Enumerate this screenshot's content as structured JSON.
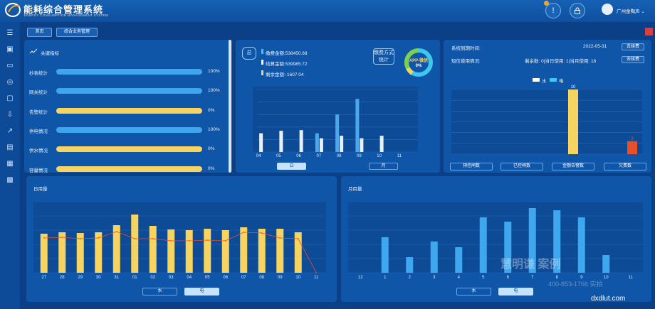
{
  "header": {
    "title": "能耗综合管理系统",
    "subtitle": "ENERGY CONSUMPTION MANAGEMENT SYSTEM",
    "alert_glyph": "!",
    "user_name": "广州金陶声"
  },
  "nav": {
    "home": "首页",
    "tab": "综合业务管理"
  },
  "key_indicators": {
    "title": "关键指标",
    "rows": [
      {
        "label": "抄表统计",
        "value": 100,
        "display": "100%",
        "color": "#3ea5ee"
      },
      {
        "label": "网关统计",
        "value": 100,
        "display": "100%",
        "color": "#3ea5ee"
      },
      {
        "label": "告警统计",
        "value": 0,
        "display": "0%",
        "color": "#f7d35f"
      },
      {
        "label": "供电情况",
        "value": 100,
        "display": "100%",
        "color": "#3ea5ee"
      },
      {
        "label": "供水情况",
        "value": 0,
        "display": "0%",
        "color": "#f7d35f"
      },
      {
        "label": "容量情况",
        "value": 0,
        "display": "0%",
        "color": "#f7d35f"
      }
    ]
  },
  "payment": {
    "total_tag": "总",
    "items": [
      {
        "label": "缴费金额:538450.68",
        "color": "#3ec8f0"
      },
      {
        "label": "结算金额:539985.72",
        "color": "#ffffff"
      },
      {
        "label": "剩余金额:-1607.04",
        "color": "#f7d35f"
      }
    ],
    "method_label": "缴费方式统计",
    "donut_label": "APP-微信",
    "donut_value": "0%",
    "tabs": [
      "日",
      "月"
    ],
    "active_tab": "日"
  },
  "system": {
    "expire_label": "系统到期时间:",
    "expire_date": "2022-05-31",
    "renew_btn": "去续费",
    "sms_label": "短信使用情况:",
    "sms_detail": "剩余数: 0|当日使用: 1|当月使用: 18",
    "legend": [
      "水",
      "电"
    ],
    "buttons": [
      "预控闸数",
      "已控闸数",
      "金额告警数",
      "欠费数"
    ]
  },
  "daily": {
    "title": "日用量",
    "tabs": [
      "水",
      "电"
    ],
    "active_tab": "电"
  },
  "monthly": {
    "title": "月用量",
    "tabs": [
      "水",
      "电"
    ],
    "active_tab": "电"
  },
  "watermark": {
    "brand": "慧明谦 案例",
    "phone": "400-853-1766 实拍",
    "site": "dxdlut.com"
  },
  "chart_data": [
    {
      "type": "bar",
      "name": "payment-chart",
      "categories": [
        "04",
        "05",
        "06",
        "07",
        "08",
        "09",
        "10",
        "11"
      ],
      "series": [
        {
          "name": "缴费金额",
          "color": "#4aa8ec",
          "values": [
            0,
            0,
            0,
            30,
            60,
            85,
            0,
            0
          ]
        },
        {
          "name": "结算金额",
          "color": "#e8f1fb",
          "values": [
            30,
            34,
            35,
            22,
            26,
            22,
            26,
            0
          ]
        }
      ],
      "ylim": [
        0,
        100
      ]
    },
    {
      "type": "bar",
      "name": "alarm-chart",
      "categories": [
        "",
        ""
      ],
      "series": [
        {
          "name": "value",
          "values": [
            10,
            2
          ],
          "colors": [
            "#f7d35f",
            "#e8502a"
          ]
        }
      ],
      "ylim": [
        0,
        10
      ]
    },
    {
      "type": "bar",
      "name": "daily-chart",
      "categories": [
        "27",
        "28",
        "29",
        "30",
        "31",
        "01",
        "02",
        "03",
        "04",
        "05",
        "06",
        "07",
        "08",
        "09",
        "10",
        "11"
      ],
      "series": [
        {
          "name": "电",
          "color": "#f7d35f",
          "values": [
            55,
            57,
            56,
            57,
            67,
            82,
            66,
            61,
            60,
            62,
            60,
            64,
            62,
            62,
            57,
            0
          ]
        },
        {
          "name": "trend",
          "type": "line",
          "color": "#e8502a",
          "values": [
            49,
            50,
            48,
            49,
            58,
            48,
            48,
            45,
            45,
            46,
            45,
            57,
            56,
            49,
            48,
            0
          ]
        }
      ],
      "ylim": [
        0,
        100
      ]
    },
    {
      "type": "bar",
      "name": "monthly-chart",
      "categories": [
        "12",
        "1",
        "2",
        "3",
        "4",
        "5",
        "6",
        "7",
        "8",
        "9",
        "10",
        "11"
      ],
      "series": [
        {
          "name": "电",
          "color": "#3fa7ee",
          "values": [
            0,
            50,
            22,
            44,
            36,
            78,
            72,
            91,
            88,
            78,
            25,
            0
          ]
        }
      ],
      "ylim": [
        0,
        100
      ]
    }
  ]
}
